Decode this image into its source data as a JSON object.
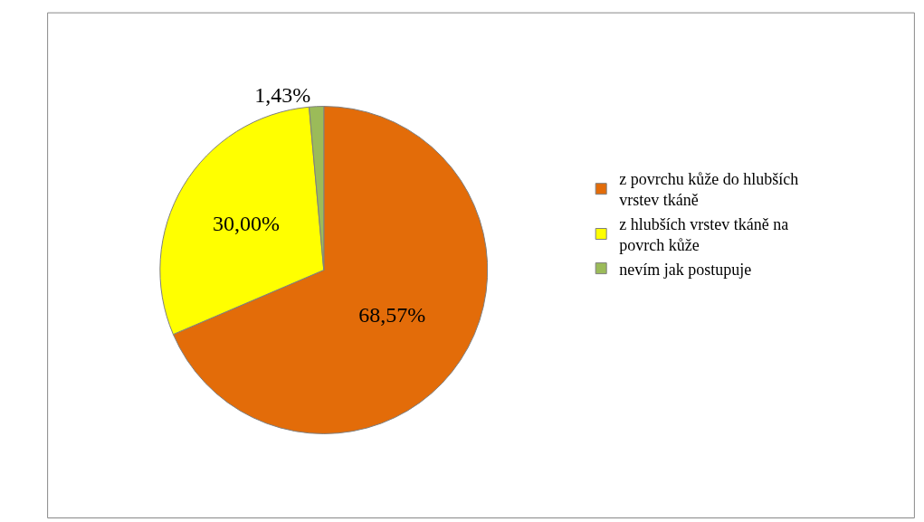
{
  "chart_data": {
    "type": "pie",
    "categories": [
      "z povrchu kůže do hlubších vrstev tkáně",
      "z hlubších vrstev tkáně na povrch kůže",
      "nevím jak postupuje"
    ],
    "values": [
      68.57,
      30.0,
      1.43
    ],
    "value_labels": [
      "68,57%",
      "30,00%",
      "1,43%"
    ],
    "colors": [
      "#e36c09",
      "#ffff00",
      "#9bbb59"
    ],
    "legend": "right"
  }
}
